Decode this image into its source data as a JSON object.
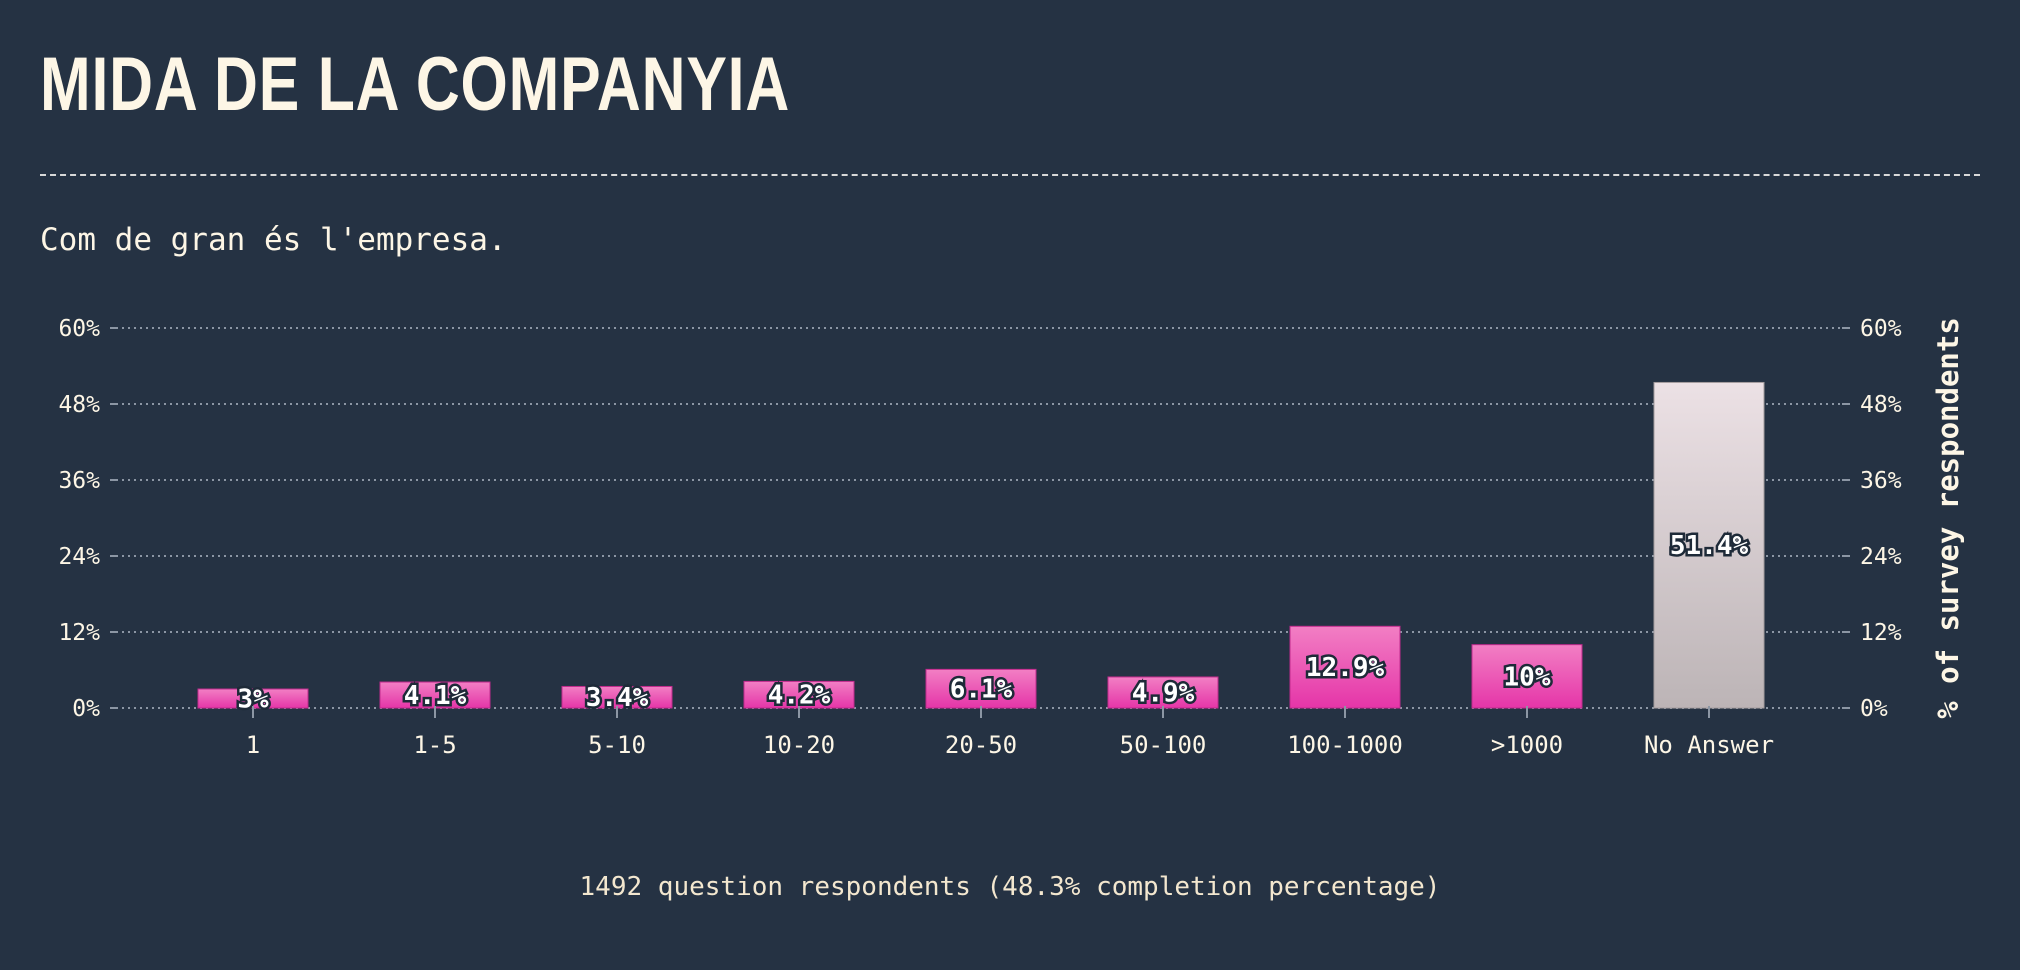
{
  "page": {
    "title": "MIDA DE LA COMPANYIA",
    "subtitle": "Com de gran és l'empresa.",
    "footer": "1492 question respondents (48.3% completion percentage)"
  },
  "colors": {
    "background": "#253243",
    "bar_pink_top": "#f27fc4",
    "bar_pink_bottom": "#e535a8",
    "bar_grey_top": "#ece1e5",
    "bar_grey_bottom": "#bcb4b6",
    "text": "#fdf6e6"
  },
  "chart_data": {
    "type": "bar",
    "title": "",
    "xlabel": "",
    "ylabel": "% of survey respondents",
    "ylim": [
      0,
      60
    ],
    "yticks": [
      "0%",
      "12%",
      "24%",
      "36%",
      "48%",
      "60%"
    ],
    "ytick_values": [
      0,
      12,
      24,
      36,
      48,
      60
    ],
    "grid": true,
    "categories": [
      "1",
      "1-5",
      "5-10",
      "10-20",
      "20-50",
      "50-100",
      "100-1000",
      ">1000",
      "No Answer"
    ],
    "values": [
      3,
      4.1,
      3.4,
      4.2,
      6.1,
      4.9,
      12.9,
      10,
      51.4
    ],
    "value_labels": [
      "3%",
      "4.1%",
      "3.4%",
      "4.2%",
      "6.1%",
      "4.9%",
      "12.9%",
      "10%",
      "51.4%"
    ]
  }
}
